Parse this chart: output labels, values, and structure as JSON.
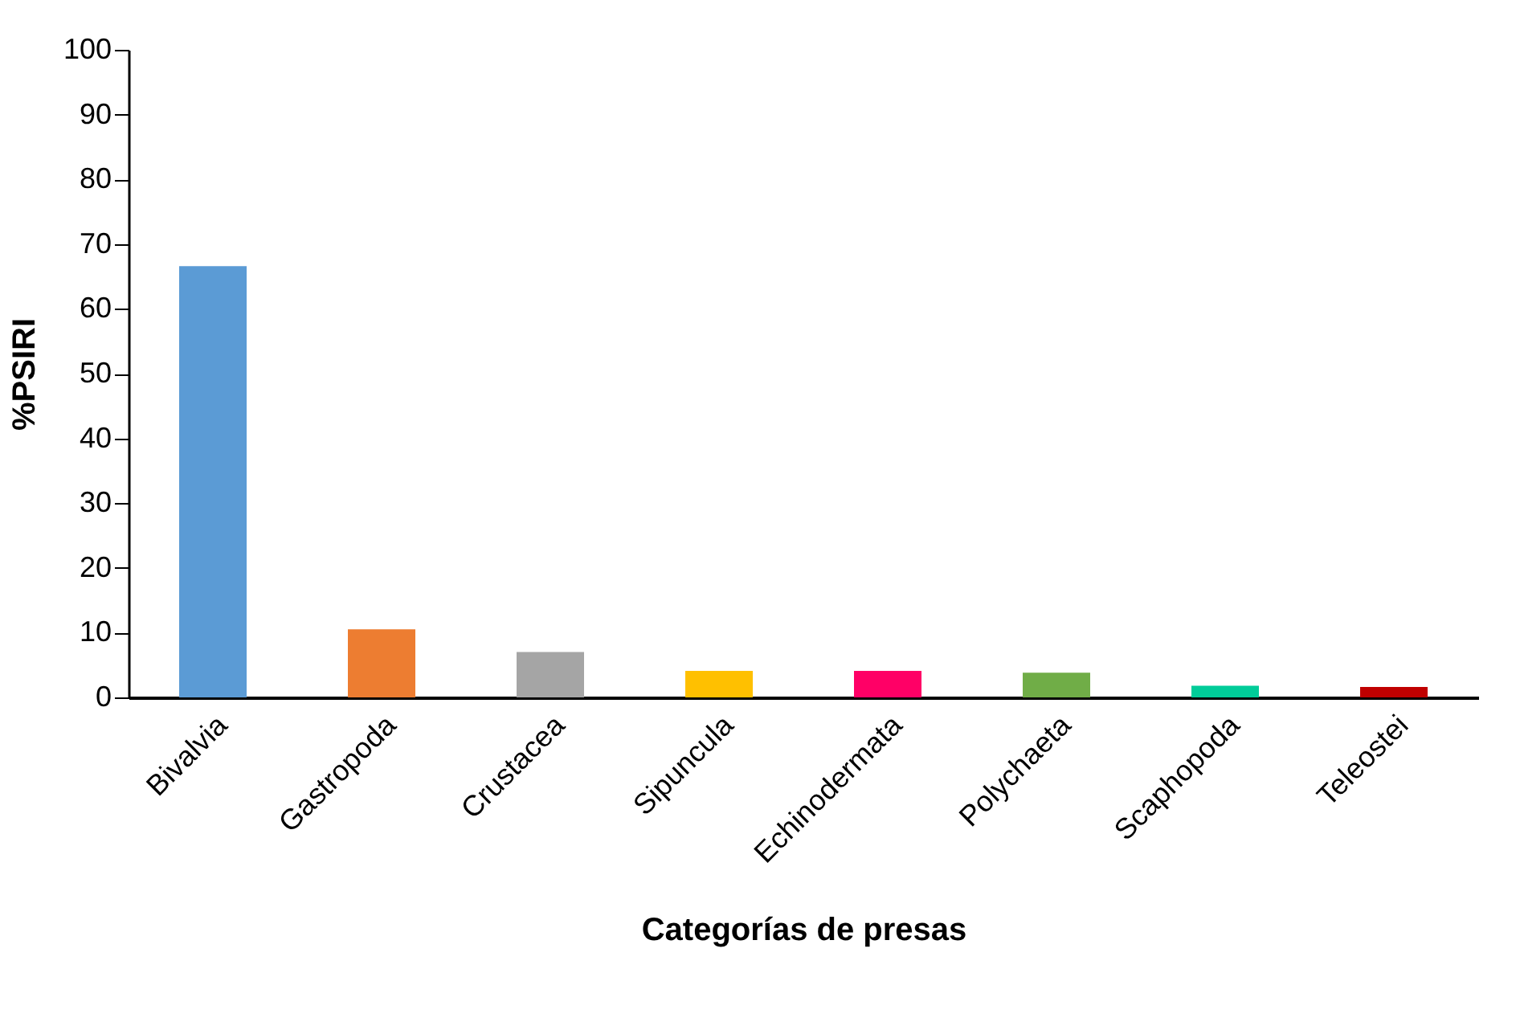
{
  "chart_data": {
    "type": "bar",
    "xlabel": "Categorías de presas",
    "ylabel": "%PSIRI",
    "categories": [
      "Bivalvia",
      "Gastropoda",
      "Crustacea",
      "Sipuncula",
      "Echinodermata",
      "Polychaeta",
      "Scaphopoda",
      "Teleostei"
    ],
    "values": [
      66.6,
      10.5,
      7.0,
      4.1,
      4.1,
      3.8,
      1.8,
      1.6
    ],
    "colors": [
      "#5b9bd5",
      "#ed7d31",
      "#a5a5a5",
      "#ffc000",
      "#ff0066",
      "#70ad47",
      "#00cc99",
      "#c00000"
    ],
    "ylim": [
      0,
      100
    ],
    "yticks": [
      0,
      10,
      20,
      30,
      40,
      50,
      60,
      70,
      80,
      90,
      100
    ],
    "grid": false
  }
}
